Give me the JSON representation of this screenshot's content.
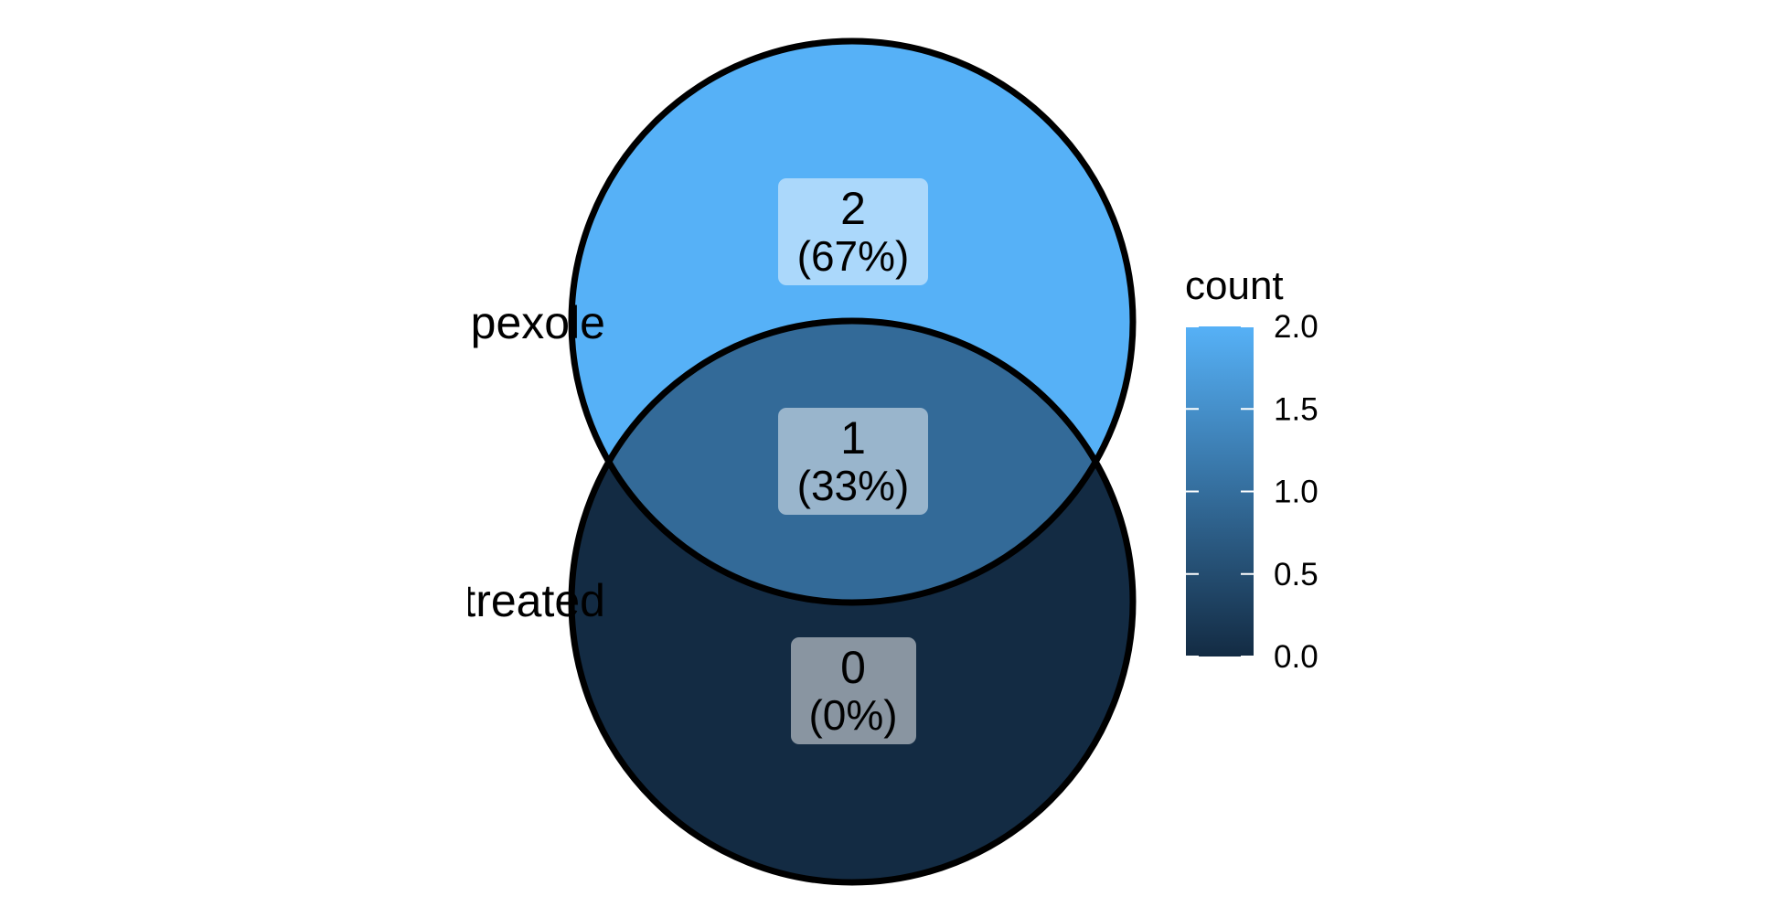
{
  "sets": [
    {
      "name": "nipexole"
    },
    {
      "name": "treated"
    }
  ],
  "regions": [
    {
      "id": "nipexole-only",
      "count": "2",
      "percent": "(67%)",
      "count_value": 2,
      "fill": "#56B1F7"
    },
    {
      "id": "both",
      "count": "1",
      "percent": "(33%)",
      "count_value": 1,
      "fill": "#336A98"
    },
    {
      "id": "treated-only",
      "count": "0",
      "percent": "(0%)",
      "count_value": 0,
      "fill": "#132B43"
    }
  ],
  "legend": {
    "title": "count",
    "ticks": [
      "2.0",
      "1.5",
      "1.0",
      "0.5",
      "0.0"
    ],
    "tick_values": [
      2.0,
      1.5,
      1.0,
      0.5,
      0.0
    ],
    "low_color": "#132B43",
    "high_color": "#56B1F7"
  },
  "colors": {
    "outline": "#000000",
    "label_box": "#ffffff"
  }
}
